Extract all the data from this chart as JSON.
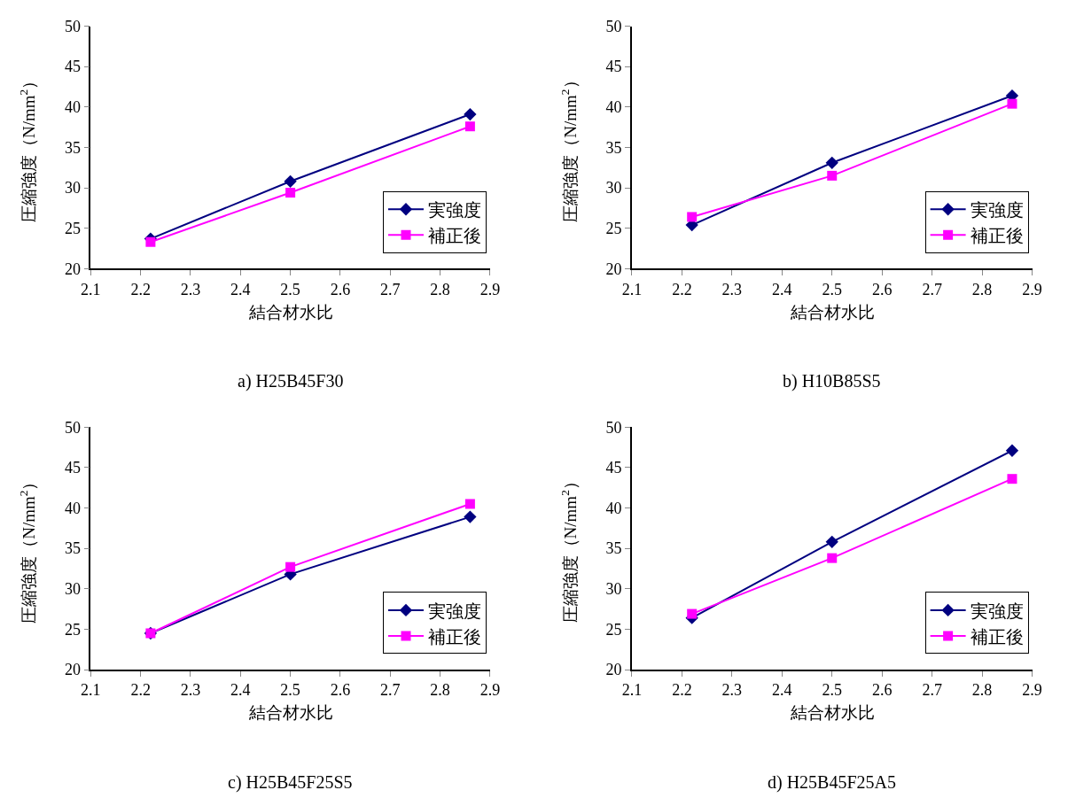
{
  "chart_data": [
    {
      "type": "line",
      "title": "a) H25B45F30",
      "xlabel": "結合材水比",
      "ylabel": "圧縮強度（N/mm$^{2}$）",
      "x": [
        2.22,
        2.5,
        2.86
      ],
      "xlim": [
        2.1,
        2.9
      ],
      "xticks": [
        2.1,
        2.2,
        2.3,
        2.4,
        2.5,
        2.6,
        2.7,
        2.8,
        2.9
      ],
      "ylim": [
        20,
        50
      ],
      "yticks": [
        20,
        25,
        30,
        35,
        40,
        45,
        50
      ],
      "grid": false,
      "legend": "bottom right",
      "series": [
        {
          "name": "実強度",
          "color": "#000080",
          "marker": "diamond",
          "values": [
            23.7,
            30.8,
            39.1
          ]
        },
        {
          "name": "補正後",
          "color": "#ff00ff",
          "marker": "square",
          "values": [
            23.3,
            29.4,
            37.6
          ]
        }
      ]
    },
    {
      "type": "line",
      "title": "b) H10B85S5",
      "xlabel": "結合材水比",
      "ylabel": "圧縮強度（N/mm$^{2}$）",
      "x": [
        2.22,
        2.5,
        2.86
      ],
      "xlim": [
        2.1,
        2.9
      ],
      "xticks": [
        2.1,
        2.2,
        2.3,
        2.4,
        2.5,
        2.6,
        2.7,
        2.8,
        2.9
      ],
      "ylim": [
        20,
        50
      ],
      "yticks": [
        20,
        25,
        30,
        35,
        40,
        45,
        50
      ],
      "grid": false,
      "legend": "bottom right",
      "series": [
        {
          "name": "実強度",
          "color": "#000080",
          "marker": "diamond",
          "values": [
            25.4,
            33.1,
            41.4
          ]
        },
        {
          "name": "補正後",
          "color": "#ff00ff",
          "marker": "square",
          "values": [
            26.4,
            31.5,
            40.4
          ]
        }
      ]
    },
    {
      "type": "line",
      "title": "c) H25B45F25S5",
      "xlabel": "結合材水比",
      "ylabel": "圧縮強度（N/mm$^{2}$）",
      "x": [
        2.22,
        2.5,
        2.86
      ],
      "xlim": [
        2.1,
        2.9
      ],
      "xticks": [
        2.1,
        2.2,
        2.3,
        2.4,
        2.5,
        2.6,
        2.7,
        2.8,
        2.9
      ],
      "ylim": [
        20,
        50
      ],
      "yticks": [
        20,
        25,
        30,
        35,
        40,
        45,
        50
      ],
      "grid": false,
      "legend": "bottom right",
      "series": [
        {
          "name": "実強度",
          "color": "#000080",
          "marker": "diamond",
          "values": [
            24.5,
            31.8,
            38.9
          ]
        },
        {
          "name": "補正後",
          "color": "#ff00ff",
          "marker": "square",
          "values": [
            24.5,
            32.7,
            40.5
          ]
        }
      ]
    },
    {
      "type": "line",
      "title": "d) H25B45F25A5",
      "xlabel": "結合材水比",
      "ylabel": "圧縮強度（N/mm$^{2}$）",
      "x": [
        2.22,
        2.5,
        2.86
      ],
      "xlim": [
        2.1,
        2.9
      ],
      "xticks": [
        2.1,
        2.2,
        2.3,
        2.4,
        2.5,
        2.6,
        2.7,
        2.8,
        2.9
      ],
      "ylim": [
        20,
        50
      ],
      "yticks": [
        20,
        25,
        30,
        35,
        40,
        45,
        50
      ],
      "grid": false,
      "legend": "bottom right",
      "series": [
        {
          "name": "実強度",
          "color": "#000080",
          "marker": "diamond",
          "values": [
            26.4,
            35.8,
            47.1
          ]
        },
        {
          "name": "補正後",
          "color": "#ff00ff",
          "marker": "square",
          "values": [
            26.9,
            33.8,
            43.6
          ]
        }
      ]
    }
  ]
}
